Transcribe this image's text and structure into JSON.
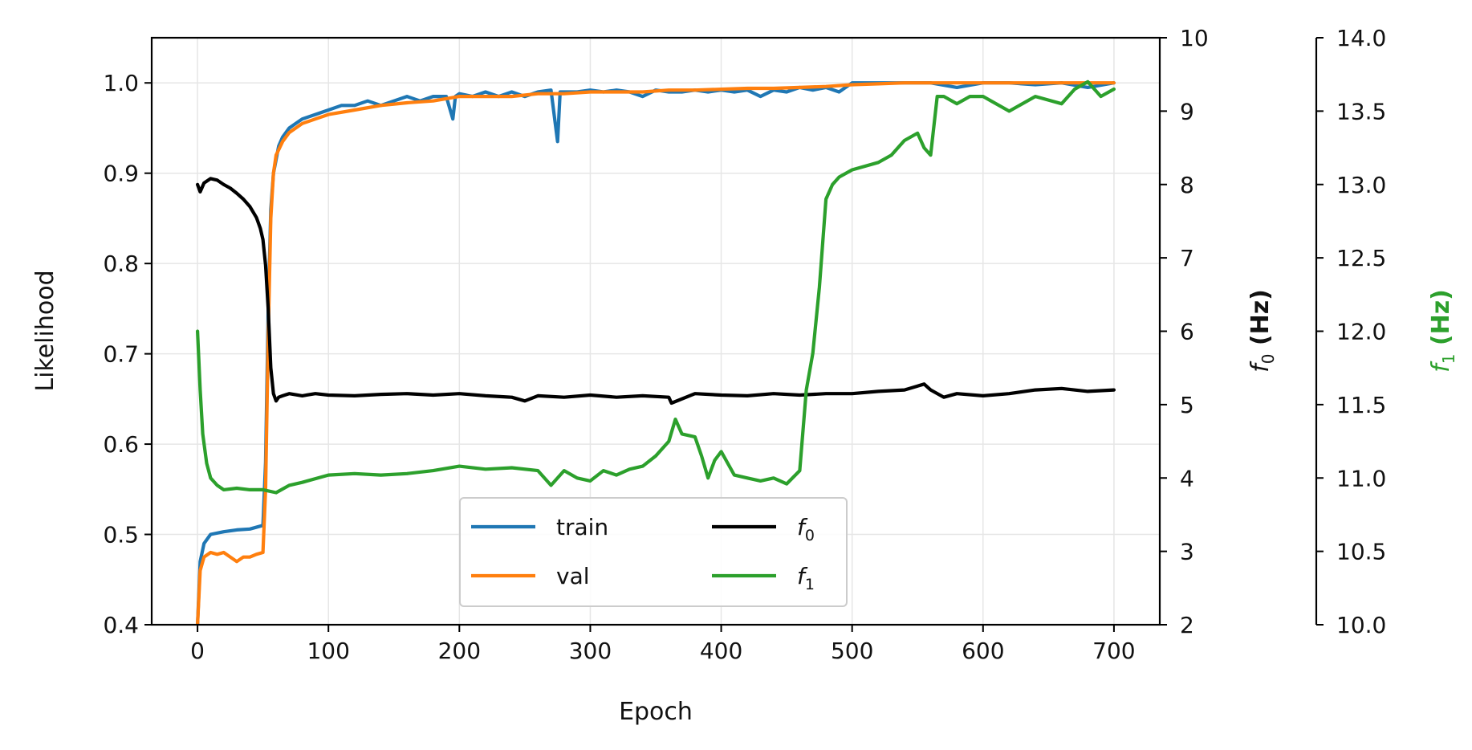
{
  "chart_data": {
    "type": "line",
    "xlabel": "Epoch",
    "grid": true,
    "legend_placement": "bottom-center",
    "legend_columns": 2,
    "x_ticks": [
      0,
      100,
      200,
      300,
      400,
      500,
      600,
      700
    ],
    "xlim": [
      -35,
      735
    ],
    "axes": {
      "left": {
        "label": "Likelihood",
        "ylim": [
          0.4,
          1.05
        ],
        "ticks": [
          "0.4",
          "0.5",
          "0.6",
          "0.7",
          "0.8",
          "0.9",
          "1.0"
        ],
        "color": "#000000"
      },
      "right1": {
        "label": "f0 (Hz)",
        "label_main": "f",
        "label_sub": "0",
        "label_unit": " (Hz)",
        "ylim": [
          2,
          10
        ],
        "ticks": [
          "2",
          "3",
          "4",
          "5",
          "6",
          "7",
          "8",
          "9",
          "10"
        ],
        "color": "#000000"
      },
      "right2": {
        "label": "f1 (Hz)",
        "label_main": "f",
        "label_sub": "1",
        "label_unit": " (Hz)",
        "ylim": [
          10,
          14
        ],
        "ticks": [
          "10.0",
          "10.5",
          "11.0",
          "11.5",
          "12.0",
          "12.5",
          "13.0",
          "13.5",
          "14.0"
        ],
        "color": "#2ca02c"
      }
    },
    "series": [
      {
        "name": "train",
        "legend_main": "train",
        "legend_sub": "",
        "axis": "left",
        "color": "#1f77b4",
        "x": [
          0,
          2,
          5,
          10,
          20,
          30,
          40,
          50,
          52,
          54,
          56,
          58,
          60,
          62,
          65,
          70,
          75,
          80,
          90,
          100,
          110,
          120,
          130,
          140,
          150,
          160,
          170,
          180,
          190,
          195,
          197,
          200,
          210,
          220,
          230,
          240,
          250,
          260,
          270,
          275,
          277,
          280,
          290,
          300,
          310,
          320,
          330,
          340,
          350,
          360,
          370,
          380,
          390,
          400,
          410,
          420,
          430,
          440,
          450,
          460,
          470,
          480,
          490,
          500,
          520,
          540,
          560,
          580,
          600,
          620,
          640,
          660,
          680,
          700
        ],
        "y": [
          0.4,
          0.47,
          0.49,
          0.5,
          0.503,
          0.505,
          0.506,
          0.51,
          0.58,
          0.75,
          0.86,
          0.9,
          0.915,
          0.93,
          0.94,
          0.95,
          0.955,
          0.96,
          0.965,
          0.97,
          0.975,
          0.975,
          0.98,
          0.975,
          0.98,
          0.985,
          0.98,
          0.985,
          0.985,
          0.96,
          0.985,
          0.988,
          0.985,
          0.99,
          0.985,
          0.99,
          0.985,
          0.99,
          0.992,
          0.935,
          0.99,
          0.99,
          0.99,
          0.992,
          0.99,
          0.992,
          0.99,
          0.985,
          0.992,
          0.99,
          0.99,
          0.992,
          0.99,
          0.992,
          0.99,
          0.992,
          0.985,
          0.992,
          0.99,
          0.995,
          0.992,
          0.995,
          0.99,
          1.0,
          1.0,
          1.0,
          1.0,
          0.995,
          1.0,
          1.0,
          0.998,
          1.0,
          0.995,
          1.0
        ]
      },
      {
        "name": "val",
        "legend_main": "val",
        "legend_sub": "",
        "axis": "left",
        "color": "#ff7f0e",
        "x": [
          0,
          2,
          5,
          10,
          15,
          20,
          25,
          30,
          35,
          40,
          45,
          50,
          52,
          54,
          56,
          58,
          60,
          65,
          70,
          80,
          90,
          100,
          120,
          140,
          160,
          180,
          200,
          220,
          240,
          260,
          280,
          300,
          320,
          340,
          360,
          380,
          400,
          420,
          440,
          460,
          480,
          500,
          520,
          540,
          560,
          580,
          600,
          620,
          640,
          660,
          680,
          700
        ],
        "y": [
          0.4,
          0.46,
          0.475,
          0.48,
          0.478,
          0.48,
          0.475,
          0.47,
          0.475,
          0.475,
          0.478,
          0.48,
          0.55,
          0.72,
          0.85,
          0.9,
          0.92,
          0.935,
          0.945,
          0.955,
          0.96,
          0.965,
          0.97,
          0.975,
          0.978,
          0.98,
          0.985,
          0.985,
          0.985,
          0.988,
          0.988,
          0.99,
          0.99,
          0.99,
          0.992,
          0.992,
          0.993,
          0.994,
          0.994,
          0.995,
          0.996,
          0.998,
          0.999,
          1.0,
          1.0,
          1.0,
          1.0,
          1.0,
          1.0,
          1.0,
          1.0,
          1.0
        ]
      },
      {
        "name": "f0",
        "legend_main": "f",
        "legend_sub": "0",
        "axis": "right1",
        "color": "#000000",
        "x": [
          0,
          2,
          5,
          10,
          15,
          20,
          25,
          30,
          35,
          40,
          45,
          48,
          50,
          52,
          54,
          56,
          58,
          60,
          62,
          65,
          70,
          80,
          90,
          100,
          120,
          140,
          160,
          180,
          200,
          220,
          240,
          250,
          260,
          280,
          300,
          320,
          340,
          360,
          362,
          380,
          400,
          420,
          440,
          460,
          480,
          500,
          520,
          540,
          555,
          560,
          570,
          580,
          600,
          620,
          640,
          660,
          680,
          700
        ],
        "y": [
          8.0,
          7.9,
          8.02,
          8.08,
          8.06,
          8.0,
          7.95,
          7.88,
          7.8,
          7.7,
          7.55,
          7.4,
          7.25,
          6.9,
          6.3,
          5.5,
          5.15,
          5.05,
          5.1,
          5.12,
          5.15,
          5.12,
          5.15,
          5.13,
          5.12,
          5.14,
          5.15,
          5.13,
          5.15,
          5.12,
          5.1,
          5.05,
          5.12,
          5.1,
          5.13,
          5.1,
          5.12,
          5.1,
          5.02,
          5.15,
          5.13,
          5.12,
          5.15,
          5.13,
          5.15,
          5.15,
          5.18,
          5.2,
          5.28,
          5.2,
          5.1,
          5.15,
          5.12,
          5.15,
          5.2,
          5.22,
          5.18,
          5.2
        ]
      },
      {
        "name": "f1",
        "legend_main": "f",
        "legend_sub": "1",
        "axis": "right2",
        "color": "#2ca02c",
        "x": [
          0,
          2,
          4,
          7,
          10,
          15,
          20,
          30,
          40,
          50,
          60,
          70,
          80,
          100,
          120,
          140,
          160,
          180,
          200,
          220,
          240,
          260,
          270,
          280,
          290,
          300,
          310,
          320,
          330,
          340,
          350,
          360,
          365,
          370,
          380,
          385,
          390,
          395,
          400,
          410,
          420,
          430,
          440,
          450,
          460,
          465,
          470,
          475,
          480,
          485,
          490,
          500,
          520,
          530,
          540,
          550,
          555,
          560,
          565,
          570,
          580,
          590,
          600,
          620,
          640,
          660,
          670,
          680,
          690,
          700
        ],
        "y": [
          12.0,
          11.6,
          11.3,
          11.1,
          11.0,
          10.95,
          10.92,
          10.93,
          10.92,
          10.92,
          10.9,
          10.95,
          10.97,
          11.02,
          11.03,
          11.02,
          11.03,
          11.05,
          11.08,
          11.06,
          11.07,
          11.05,
          10.95,
          11.05,
          11.0,
          10.98,
          11.05,
          11.02,
          11.06,
          11.08,
          11.15,
          11.25,
          11.4,
          11.3,
          11.28,
          11.15,
          11.0,
          11.12,
          11.18,
          11.02,
          11.0,
          10.98,
          11.0,
          10.96,
          11.05,
          11.6,
          11.85,
          12.3,
          12.9,
          13.0,
          13.05,
          13.1,
          13.15,
          13.2,
          13.3,
          13.35,
          13.25,
          13.2,
          13.6,
          13.6,
          13.55,
          13.6,
          13.6,
          13.5,
          13.6,
          13.55,
          13.65,
          13.7,
          13.6,
          13.65
        ]
      }
    ]
  }
}
